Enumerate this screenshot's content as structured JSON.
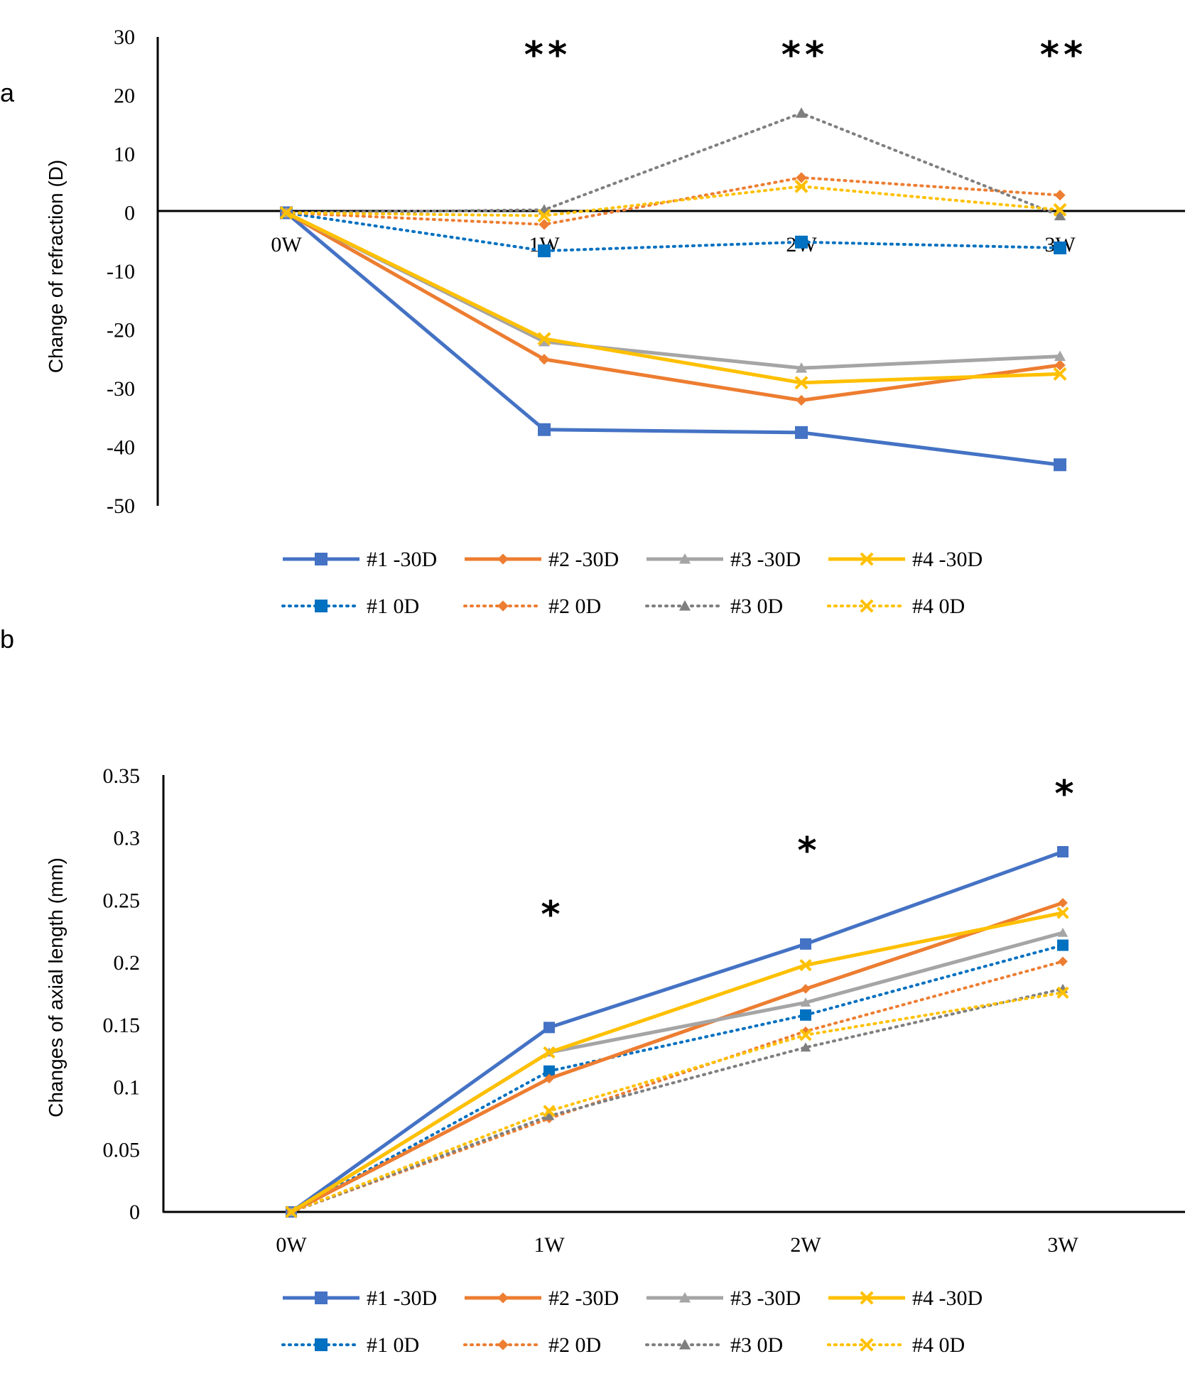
{
  "chart_data": [
    {
      "panel": "a",
      "type": "line",
      "ylabel": "Change of refraction (D)",
      "ylim": [
        -50,
        30
      ],
      "yticks": [
        "30",
        "20",
        "10",
        "0",
        "-10",
        "-20",
        "-30",
        "-40",
        "-50"
      ],
      "categories": [
        "0W",
        "1W",
        "2W",
        "3W"
      ],
      "significance": [
        "",
        "**",
        "**",
        "**"
      ],
      "series": [
        {
          "name": "#1 -30D",
          "values": [
            0,
            -37,
            -37.5,
            -43
          ],
          "color": "#4472C4",
          "marker": "square",
          "dash": "solid"
        },
        {
          "name": "#2 -30D",
          "values": [
            0,
            -25,
            -32,
            -26
          ],
          "color": "#ED7D31",
          "marker": "diamond",
          "dash": "solid"
        },
        {
          "name": "#3 -30D",
          "values": [
            0,
            -22,
            -26.5,
            -24.5
          ],
          "color": "#A5A5A5",
          "marker": "triangle",
          "dash": "solid"
        },
        {
          "name": "#4 -30D",
          "values": [
            0,
            -21.5,
            -29,
            -27.5
          ],
          "color": "#FFC000",
          "marker": "x",
          "dash": "solid"
        },
        {
          "name": "#1 0D",
          "values": [
            0,
            -6.5,
            -5,
            -6
          ],
          "color": "#0070C0",
          "marker": "square",
          "dash": "dotted"
        },
        {
          "name": "#2 0D",
          "values": [
            0,
            -2,
            6,
            3
          ],
          "color": "#ED7D31",
          "marker": "diamond",
          "dash": "dotted"
        },
        {
          "name": "#3 0D",
          "values": [
            0,
            0.5,
            17,
            -0.5
          ],
          "color": "#7F7F7F",
          "marker": "triangle",
          "dash": "dotted"
        },
        {
          "name": "#4 0D",
          "values": [
            0,
            -0.5,
            4.5,
            0.5
          ],
          "color": "#FFC000",
          "marker": "x",
          "dash": "dotted"
        }
      ]
    },
    {
      "panel": "b",
      "type": "line",
      "ylabel": "Changes of axial length (mm)",
      "ylim": [
        0,
        0.35
      ],
      "yticks": [
        "0.35",
        "0.3",
        "0.25",
        "0.2",
        "0.15",
        "0.1",
        "0.05",
        "0"
      ],
      "categories": [
        "0W",
        "1W",
        "2W",
        "3W"
      ],
      "significance": [
        "",
        "*",
        "*",
        "*"
      ],
      "series": [
        {
          "name": "#1 -30D",
          "values": [
            0,
            0.148,
            0.215,
            0.289
          ],
          "color": "#4472C4",
          "marker": "square",
          "dash": "solid"
        },
        {
          "name": "#2 -30D",
          "values": [
            0,
            0.107,
            0.179,
            0.248
          ],
          "color": "#ED7D31",
          "marker": "diamond",
          "dash": "solid"
        },
        {
          "name": "#3 -30D",
          "values": [
            0,
            0.128,
            0.168,
            0.224
          ],
          "color": "#A5A5A5",
          "marker": "triangle",
          "dash": "solid"
        },
        {
          "name": "#4 -30D",
          "values": [
            0,
            0.128,
            0.198,
            0.24
          ],
          "color": "#FFC000",
          "marker": "x",
          "dash": "solid"
        },
        {
          "name": "#1 0D",
          "values": [
            0,
            0.113,
            0.158,
            0.214
          ],
          "color": "#0070C0",
          "marker": "square",
          "dash": "dotted"
        },
        {
          "name": "#2 0D",
          "values": [
            0,
            0.075,
            0.145,
            0.201
          ],
          "color": "#ED7D31",
          "marker": "diamond",
          "dash": "dotted"
        },
        {
          "name": "#3 0D",
          "values": [
            0,
            0.077,
            0.132,
            0.179
          ],
          "color": "#7F7F7F",
          "marker": "triangle",
          "dash": "dotted"
        },
        {
          "name": "#4 0D",
          "values": [
            0,
            0.081,
            0.142,
            0.176
          ],
          "color": "#FFC000",
          "marker": "x",
          "dash": "dotted"
        }
      ]
    }
  ]
}
